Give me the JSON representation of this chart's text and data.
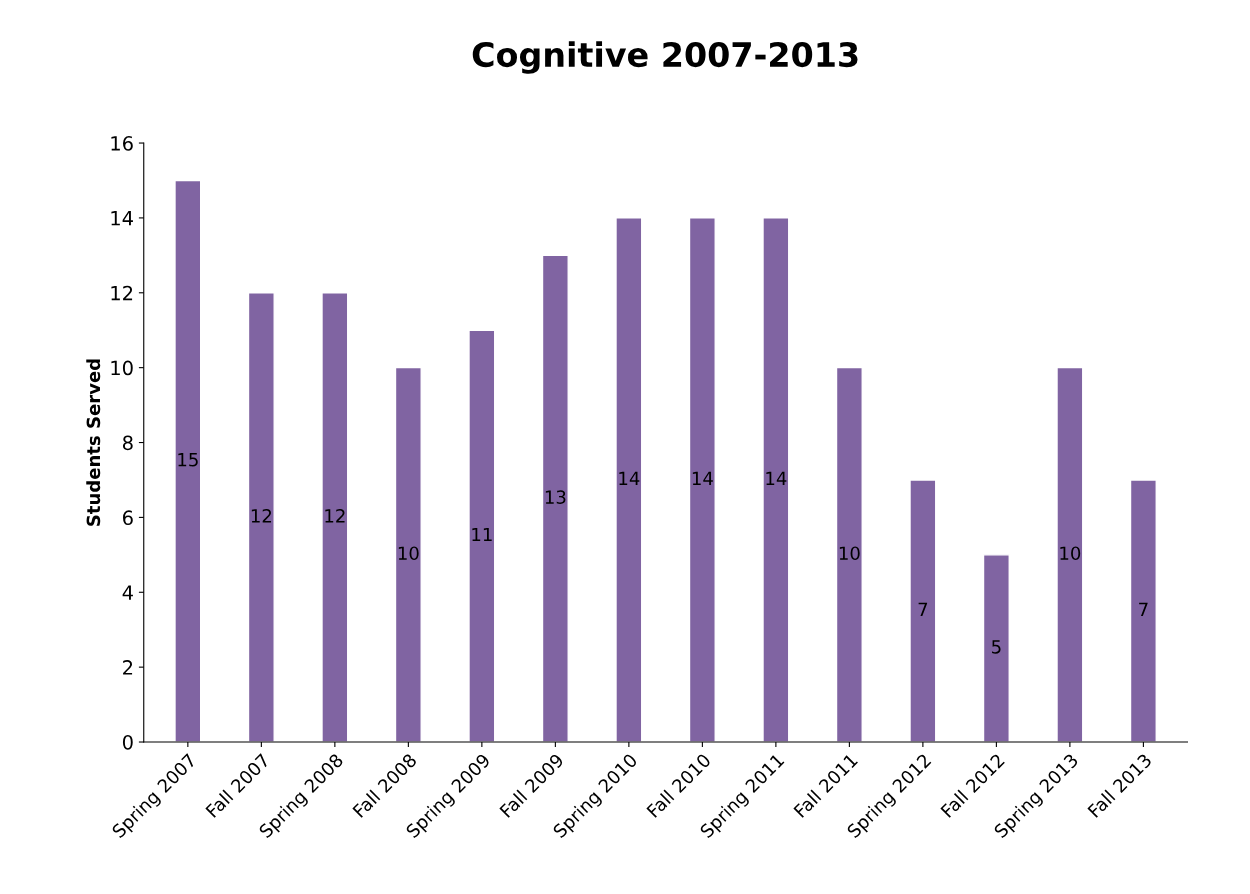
{
  "chart_data": {
    "type": "bar",
    "title": "Cognitive 2007-2013",
    "ylabel": "Students Served",
    "categories": [
      "Spring 2007",
      "Fall 2007",
      "Spring 2008",
      "Fall 2008",
      "Spring 2009",
      "Fall 2009",
      "Spring 2010",
      "Fall 2010",
      "Spring 2011",
      "Fall 2011",
      "Spring 2012",
      "Fall 2012",
      "Spring 2013",
      "Fall 2013"
    ],
    "values": [
      15,
      12,
      12,
      10,
      11,
      13,
      14,
      14,
      14,
      10,
      7,
      5,
      10,
      7
    ],
    "color": "#8064a2",
    "ylim": [
      0,
      16
    ],
    "yticks": [
      0,
      2,
      4,
      6,
      8,
      10,
      12,
      14,
      16
    ],
    "grid": false,
    "data_labels": true
  }
}
